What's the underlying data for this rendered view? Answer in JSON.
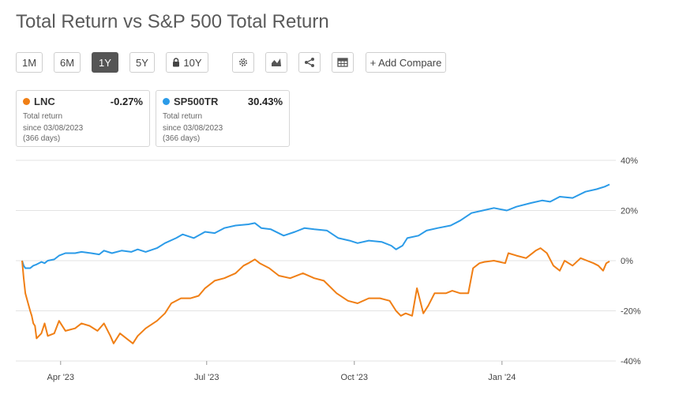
{
  "title": "Total Return vs S&P 500 Total Return",
  "toolbar": {
    "ranges": [
      {
        "label": "1M",
        "active": false
      },
      {
        "label": "6M",
        "active": false
      },
      {
        "label": "1Y",
        "active": true
      },
      {
        "label": "5Y",
        "active": false
      },
      {
        "label": "10Y",
        "active": false,
        "locked": true
      }
    ],
    "icons": [
      "gear-icon",
      "chart-type-icon",
      "share-icon",
      "table-icon"
    ],
    "add_compare_label": "+ Add Compare"
  },
  "cards": [
    {
      "ticker": "LNC",
      "value": "-0.27%",
      "color": "#f07f15",
      "label": "Total return",
      "since": "since 03/08/2023",
      "days": "(366 days)"
    },
    {
      "ticker": "SP500TR",
      "value": "30.43%",
      "color": "#2b9be8",
      "label": "Total return",
      "since": "since 03/08/2023",
      "days": "(366 days)"
    }
  ],
  "chart_data": {
    "type": "line",
    "x_start": "2023-03-08",
    "x_end": "2024-03-08",
    "x_ticks": [
      {
        "label": "Apr '23",
        "date": "2023-04-01"
      },
      {
        "label": "Jul '23",
        "date": "2023-07-01"
      },
      {
        "label": "Oct '23",
        "date": "2023-10-01"
      },
      {
        "label": "Jan '24",
        "date": "2024-01-01"
      }
    ],
    "y_ticks": [
      40,
      20,
      0,
      -20,
      -40
    ],
    "y_tick_labels": [
      "40%",
      "20%",
      "0%",
      "-20%",
      "-40%"
    ],
    "ylim": [
      -40,
      40
    ],
    "grid": true,
    "y_axis_side": "right",
    "series": [
      {
        "name": "SP500TR",
        "color": "#2b9be8",
        "points": [
          [
            "2023-03-08",
            0
          ],
          [
            "2023-03-09",
            -2
          ],
          [
            "2023-03-10",
            -3
          ],
          [
            "2023-03-13",
            -3
          ],
          [
            "2023-03-15",
            -2
          ],
          [
            "2023-03-17",
            -1.5
          ],
          [
            "2023-03-20",
            -0.5
          ],
          [
            "2023-03-22",
            -1
          ],
          [
            "2023-03-24",
            0
          ],
          [
            "2023-03-28",
            0.5
          ],
          [
            "2023-03-31",
            2
          ],
          [
            "2023-04-04",
            3
          ],
          [
            "2023-04-10",
            3
          ],
          [
            "2023-04-14",
            3.5
          ],
          [
            "2023-04-20",
            3
          ],
          [
            "2023-04-25",
            2.5
          ],
          [
            "2023-04-28",
            4
          ],
          [
            "2023-05-03",
            3
          ],
          [
            "2023-05-09",
            4
          ],
          [
            "2023-05-15",
            3.5
          ],
          [
            "2023-05-19",
            4.5
          ],
          [
            "2023-05-24",
            3.5
          ],
          [
            "2023-05-31",
            5
          ],
          [
            "2023-06-05",
            7
          ],
          [
            "2023-06-12",
            9
          ],
          [
            "2023-06-16",
            10.5
          ],
          [
            "2023-06-23",
            9
          ],
          [
            "2023-06-30",
            11.5
          ],
          [
            "2023-07-06",
            11
          ],
          [
            "2023-07-12",
            13
          ],
          [
            "2023-07-19",
            14
          ],
          [
            "2023-07-27",
            14.5
          ],
          [
            "2023-07-31",
            15
          ],
          [
            "2023-08-04",
            13
          ],
          [
            "2023-08-10",
            12.5
          ],
          [
            "2023-08-18",
            10
          ],
          [
            "2023-08-25",
            11.5
          ],
          [
            "2023-08-31",
            13
          ],
          [
            "2023-09-06",
            12.5
          ],
          [
            "2023-09-14",
            12
          ],
          [
            "2023-09-21",
            9
          ],
          [
            "2023-09-28",
            8
          ],
          [
            "2023-10-03",
            7
          ],
          [
            "2023-10-10",
            8
          ],
          [
            "2023-10-18",
            7.5
          ],
          [
            "2023-10-24",
            6
          ],
          [
            "2023-10-27",
            4.5
          ],
          [
            "2023-10-31",
            6
          ],
          [
            "2023-11-03",
            9
          ],
          [
            "2023-11-10",
            10
          ],
          [
            "2023-11-15",
            12
          ],
          [
            "2023-11-22",
            13
          ],
          [
            "2023-11-30",
            14
          ],
          [
            "2023-12-06",
            16
          ],
          [
            "2023-12-13",
            19
          ],
          [
            "2023-12-20",
            20
          ],
          [
            "2023-12-27",
            21
          ],
          [
            "2024-01-04",
            20
          ],
          [
            "2024-01-10",
            21.5
          ],
          [
            "2024-01-19",
            23
          ],
          [
            "2024-01-26",
            24
          ],
          [
            "2024-01-31",
            23.5
          ],
          [
            "2024-02-06",
            25.5
          ],
          [
            "2024-02-14",
            25
          ],
          [
            "2024-02-22",
            27.5
          ],
          [
            "2024-02-29",
            28.5
          ],
          [
            "2024-03-05",
            29.5
          ],
          [
            "2024-03-08",
            30.4
          ]
        ]
      },
      {
        "name": "LNC",
        "color": "#f07f15",
        "points": [
          [
            "2023-03-08",
            0
          ],
          [
            "2023-03-09",
            -7
          ],
          [
            "2023-03-10",
            -13
          ],
          [
            "2023-03-13",
            -20
          ],
          [
            "2023-03-14",
            -22
          ],
          [
            "2023-03-15",
            -25
          ],
          [
            "2023-03-16",
            -26
          ],
          [
            "2023-03-17",
            -31
          ],
          [
            "2023-03-20",
            -29
          ],
          [
            "2023-03-22",
            -25
          ],
          [
            "2023-03-24",
            -30
          ],
          [
            "2023-03-28",
            -29
          ],
          [
            "2023-03-31",
            -24
          ],
          [
            "2023-04-04",
            -28
          ],
          [
            "2023-04-10",
            -27
          ],
          [
            "2023-04-14",
            -25
          ],
          [
            "2023-04-19",
            -26
          ],
          [
            "2023-04-24",
            -28
          ],
          [
            "2023-04-28",
            -25
          ],
          [
            "2023-05-02",
            -30
          ],
          [
            "2023-05-04",
            -33
          ],
          [
            "2023-05-08",
            -29
          ],
          [
            "2023-05-12",
            -31
          ],
          [
            "2023-05-16",
            -33
          ],
          [
            "2023-05-19",
            -30
          ],
          [
            "2023-05-24",
            -27
          ],
          [
            "2023-05-31",
            -24
          ],
          [
            "2023-06-05",
            -21
          ],
          [
            "2023-06-09",
            -17
          ],
          [
            "2023-06-15",
            -15
          ],
          [
            "2023-06-21",
            -15
          ],
          [
            "2023-06-26",
            -14
          ],
          [
            "2023-06-30",
            -11
          ],
          [
            "2023-07-06",
            -8
          ],
          [
            "2023-07-12",
            -7
          ],
          [
            "2023-07-19",
            -5
          ],
          [
            "2023-07-24",
            -2
          ],
          [
            "2023-07-27",
            -1
          ],
          [
            "2023-07-31",
            0.5
          ],
          [
            "2023-08-03",
            -1
          ],
          [
            "2023-08-09",
            -3
          ],
          [
            "2023-08-15",
            -6
          ],
          [
            "2023-08-22",
            -7
          ],
          [
            "2023-08-30",
            -5
          ],
          [
            "2023-09-06",
            -7
          ],
          [
            "2023-09-12",
            -8
          ],
          [
            "2023-09-20",
            -13
          ],
          [
            "2023-09-27",
            -16
          ],
          [
            "2023-10-03",
            -17
          ],
          [
            "2023-10-10",
            -15
          ],
          [
            "2023-10-17",
            -15
          ],
          [
            "2023-10-23",
            -16
          ],
          [
            "2023-10-27",
            -20
          ],
          [
            "2023-10-30",
            -22
          ],
          [
            "2023-11-02",
            -21
          ],
          [
            "2023-11-06",
            -22
          ],
          [
            "2023-11-09",
            -11
          ],
          [
            "2023-11-13",
            -21
          ],
          [
            "2023-11-16",
            -18
          ],
          [
            "2023-11-20",
            -13
          ],
          [
            "2023-11-27",
            -13
          ],
          [
            "2023-12-01",
            -12
          ],
          [
            "2023-12-06",
            -13
          ],
          [
            "2023-12-11",
            -13
          ],
          [
            "2023-12-14",
            -3
          ],
          [
            "2023-12-18",
            -1
          ],
          [
            "2023-12-21",
            -0.5
          ],
          [
            "2023-12-27",
            0
          ],
          [
            "2024-01-03",
            -1
          ],
          [
            "2024-01-05",
            3
          ],
          [
            "2024-01-10",
            2
          ],
          [
            "2024-01-16",
            1
          ],
          [
            "2024-01-22",
            4
          ],
          [
            "2024-01-25",
            5
          ],
          [
            "2024-01-29",
            3
          ],
          [
            "2024-02-02",
            -2
          ],
          [
            "2024-02-06",
            -4
          ],
          [
            "2024-02-09",
            0
          ],
          [
            "2024-02-14",
            -2
          ],
          [
            "2024-02-19",
            1
          ],
          [
            "2024-02-23",
            0
          ],
          [
            "2024-02-27",
            -1
          ],
          [
            "2024-03-01",
            -2
          ],
          [
            "2024-03-04",
            -4
          ],
          [
            "2024-03-06",
            -1
          ],
          [
            "2024-03-08",
            -0.27
          ]
        ]
      }
    ]
  }
}
